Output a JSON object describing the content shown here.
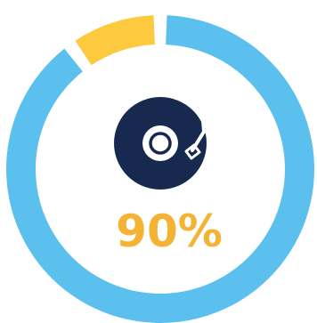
{
  "chart_data": {
    "type": "pie",
    "style": "donut",
    "slices": [
      {
        "value": 90,
        "color": "#5bc0ed"
      },
      {
        "value": 10,
        "color": "#fdc93f"
      }
    ],
    "center_label": "90%",
    "center_label_color": "#f5b335",
    "center_icon": "turntable-icon",
    "icon_color": "#17294f"
  }
}
